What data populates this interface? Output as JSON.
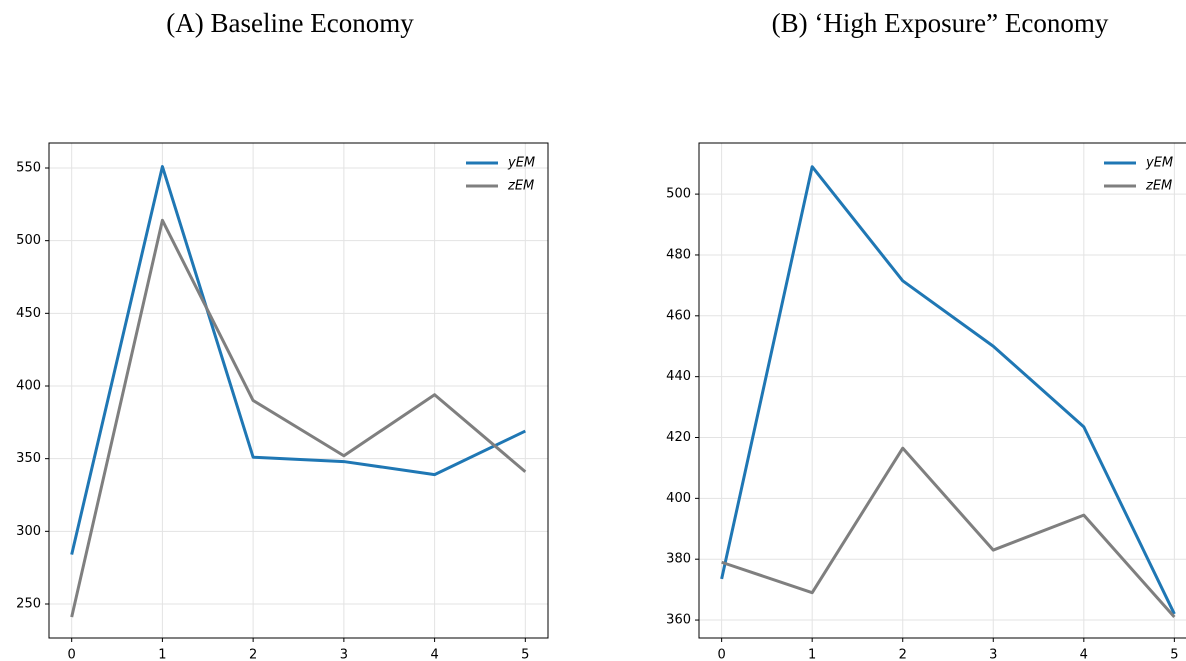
{
  "chart_data": [
    {
      "type": "line",
      "title": "(A) Baseline Economy",
      "x": [
        0,
        1,
        2,
        3,
        4,
        5
      ],
      "series": [
        {
          "name": "yEM",
          "color": "#1f77b4",
          "values": [
            284,
            551,
            351,
            348,
            339,
            369
          ]
        },
        {
          "name": "zEM",
          "color": "#7f7f7f",
          "values": [
            241,
            514,
            390,
            352,
            394,
            341
          ]
        }
      ],
      "xlim": [
        -0.25,
        5.25
      ],
      "xticks": [
        0,
        1,
        2,
        3,
        4,
        5
      ],
      "ylim": [
        226.6,
        567.2
      ],
      "yticks": [
        250,
        300,
        350,
        400,
        450,
        500,
        550
      ],
      "grid": true,
      "legend": "upper right"
    },
    {
      "type": "line",
      "title": "(B) ‘High Exposure” Economy",
      "x": [
        0,
        1,
        2,
        3,
        4,
        5
      ],
      "series": [
        {
          "name": "yEM",
          "color": "#1f77b4",
          "values": [
            373.5,
            509,
            471.5,
            450,
            423.5,
            362
          ]
        },
        {
          "name": "zEM",
          "color": "#7f7f7f",
          "values": [
            379,
            369,
            416.5,
            383,
            394.5,
            361
          ]
        }
      ],
      "xlim": [
        -0.25,
        5.25
      ],
      "xticks": [
        0,
        1,
        2,
        3,
        4,
        5
      ],
      "ylim": [
        354.1,
        516.8
      ],
      "yticks": [
        360,
        380,
        400,
        420,
        440,
        460,
        480,
        500
      ],
      "grid": true,
      "legend": "upper right"
    }
  ]
}
